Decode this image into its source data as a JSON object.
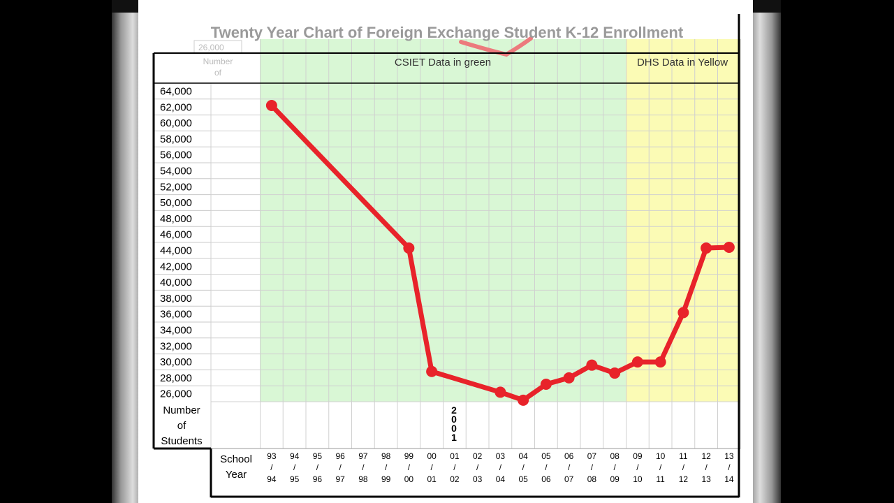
{
  "chart_data": {
    "type": "line",
    "title": "Twenty Year Chart of Foreign Exchange Student K-12 Enrollment",
    "ghost_tick": "26,000",
    "ghost_label": "Number",
    "ghost_label2": "of",
    "band_labels": {
      "csiet": "CSIET Data in green",
      "dhs": "DHS Data in Yellow"
    },
    "colors": {
      "line": "#e8232a",
      "csiet_band": "#d9f7d5",
      "dhs_band": "#fbfbb5",
      "grid": "#d0d0d0"
    },
    "y_label_lines": [
      "Number",
      "of",
      "Students"
    ],
    "x_label_lines": [
      "School",
      "Year"
    ],
    "yticks": [
      "64,000",
      "62,000",
      "60,000",
      "58,000",
      "56,000",
      "54,000",
      "52,000",
      "50,000",
      "48,000",
      "46,000",
      "44,000",
      "42,000",
      "40,000",
      "38,000",
      "36,000",
      "34,000",
      "32,000",
      "30,000",
      "28,000",
      "26,000"
    ],
    "ylim": [
      26000,
      64000
    ],
    "categories": [
      [
        "93",
        "94"
      ],
      [
        "94",
        "95"
      ],
      [
        "95",
        "96"
      ],
      [
        "96",
        "97"
      ],
      [
        "97",
        "98"
      ],
      [
        "98",
        "99"
      ],
      [
        "99",
        "00"
      ],
      [
        "00",
        "01"
      ],
      [
        "01",
        "02"
      ],
      [
        "02",
        "03"
      ],
      [
        "03",
        "04"
      ],
      [
        "04",
        "05"
      ],
      [
        "05",
        "06"
      ],
      [
        "06",
        "07"
      ],
      [
        "07",
        "08"
      ],
      [
        "08",
        "09"
      ],
      [
        "09",
        "10"
      ],
      [
        "10",
        "11"
      ],
      [
        "11",
        "12"
      ],
      [
        "12",
        "13"
      ],
      [
        "13",
        "14"
      ]
    ],
    "csiet_range": [
      "93/94",
      "08/09"
    ],
    "dhs_range": [
      "09/10",
      "13/14"
    ],
    "marker_2001": [
      "2",
      "0",
      "0",
      "1"
    ],
    "series": [
      {
        "values": [
          62200,
          null,
          null,
          null,
          null,
          null,
          44300,
          28800,
          null,
          null,
          26200,
          25200,
          27200,
          28000,
          29600,
          28600,
          30000,
          30000,
          36200,
          44300,
          44400
        ]
      }
    ]
  }
}
